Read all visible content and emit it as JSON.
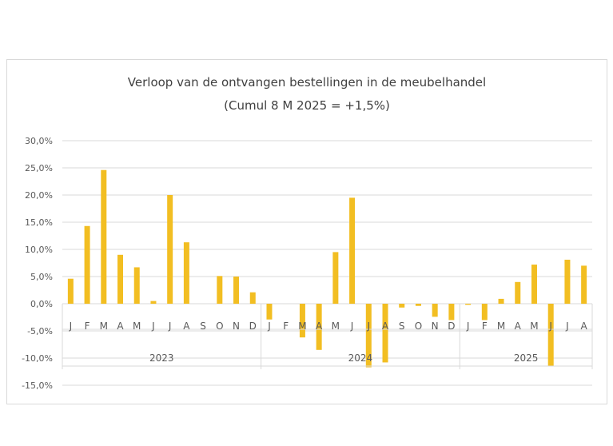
{
  "chart_data": {
    "type": "bar",
    "title": "Verloop van de ontvangen bestellingen in de meubelhandel",
    "subtitle": "(Cumul 8 M 2025 = +1,5%)",
    "xlabel": "",
    "ylabel": "",
    "ylim": [
      -15,
      30
    ],
    "yticks": [
      "30,0%",
      "25,0%",
      "20,0%",
      "15,0%",
      "10,0%",
      "5,0%",
      "0,0%",
      "-5,0%",
      "-10,0%",
      "-15,0%"
    ],
    "grid": true,
    "legend": "none",
    "bar_color": "#F2BE22",
    "groups": [
      {
        "year": "2023",
        "months": [
          "J",
          "F",
          "M",
          "A",
          "M",
          "J",
          "J",
          "A",
          "S",
          "O",
          "N",
          "D"
        ],
        "values": [
          4.6,
          14.3,
          24.6,
          9.0,
          6.7,
          0.5,
          20.0,
          11.3,
          0.0,
          5.1,
          5.0,
          2.1
        ]
      },
      {
        "year": "2024",
        "months": [
          "J",
          "F",
          "M",
          "A",
          "M",
          "J",
          "J",
          "A",
          "S",
          "O",
          "N",
          "D"
        ],
        "values": [
          -2.9,
          0.0,
          -6.2,
          -8.5,
          9.5,
          19.5,
          -11.7,
          -10.8,
          -0.7,
          -0.4,
          -2.4,
          -3.0
        ]
      },
      {
        "year": "2025",
        "months": [
          "J",
          "F",
          "M",
          "A",
          "M",
          "J",
          "J",
          "A"
        ],
        "values": [
          -0.2,
          -3.0,
          0.9,
          4.0,
          7.2,
          -11.5,
          8.1,
          7.0
        ]
      }
    ]
  }
}
